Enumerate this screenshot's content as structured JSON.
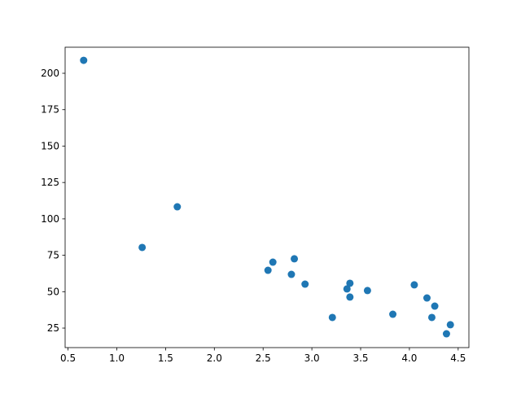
{
  "chart_data": {
    "type": "scatter",
    "title": "",
    "xlabel": "",
    "ylabel": "",
    "xlim": [
      0.47,
      4.61
    ],
    "ylim": [
      11.6,
      217.9
    ],
    "xticks": [
      0.5,
      1.0,
      1.5,
      2.0,
      2.5,
      3.0,
      3.5,
      4.0,
      4.5
    ],
    "xtick_labels": [
      "0.5",
      "1.0",
      "1.5",
      "2.0",
      "2.5",
      "3.0",
      "3.5",
      "4.0",
      "4.5"
    ],
    "yticks": [
      25,
      50,
      75,
      100,
      125,
      150,
      175,
      200
    ],
    "ytick_labels": [
      "25",
      "50",
      "75",
      "100",
      "125",
      "150",
      "175",
      "200"
    ],
    "grid": false,
    "color": "#1f77b4",
    "points": [
      {
        "x": 0.66,
        "y": 208.9
      },
      {
        "x": 1.26,
        "y": 80.4
      },
      {
        "x": 1.62,
        "y": 108.3
      },
      {
        "x": 2.55,
        "y": 64.7
      },
      {
        "x": 2.6,
        "y": 70.3
      },
      {
        "x": 2.79,
        "y": 61.9
      },
      {
        "x": 2.82,
        "y": 72.6
      },
      {
        "x": 2.93,
        "y": 55.2
      },
      {
        "x": 3.21,
        "y": 32.3
      },
      {
        "x": 3.36,
        "y": 51.9
      },
      {
        "x": 3.39,
        "y": 55.8
      },
      {
        "x": 3.39,
        "y": 46.3
      },
      {
        "x": 3.57,
        "y": 50.8
      },
      {
        "x": 3.83,
        "y": 34.5
      },
      {
        "x": 4.05,
        "y": 54.7
      },
      {
        "x": 4.18,
        "y": 45.7
      },
      {
        "x": 4.23,
        "y": 32.3
      },
      {
        "x": 4.26,
        "y": 40.1
      },
      {
        "x": 4.38,
        "y": 21.1
      },
      {
        "x": 4.42,
        "y": 27.3
      }
    ]
  }
}
